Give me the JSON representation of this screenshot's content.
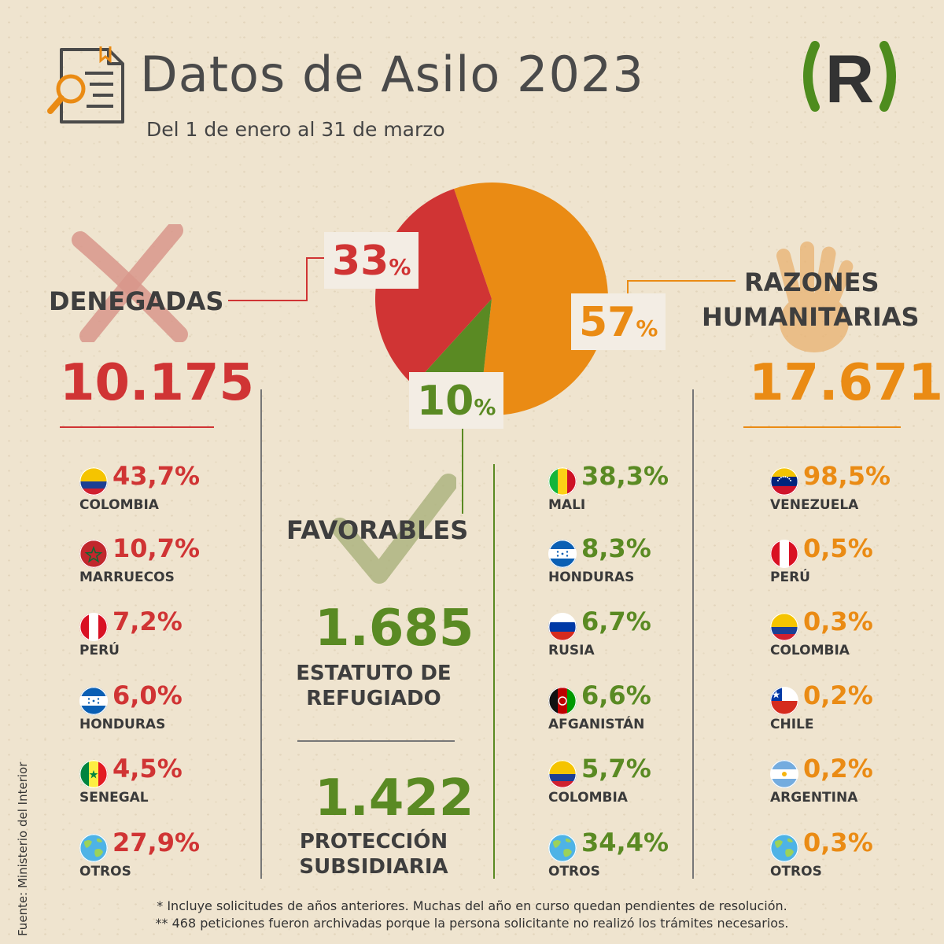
{
  "header": {
    "title": "Datos de Asilo 2023",
    "subtitle": "Del 1 de enero al 31 de marzo",
    "logo_text": "R",
    "document_icon": "document-search-icon"
  },
  "colors": {
    "denegadas": "#d03434",
    "favorables": "#5a8a23",
    "humanitarias": "#ea8b14"
  },
  "chart_data": {
    "type": "pie",
    "slices": [
      {
        "label": "RAZONES HUMANITARIAS",
        "value": 57,
        "color": "#ea8b14"
      },
      {
        "label": "FAVORABLES",
        "value": 10,
        "color": "#5a8a23"
      },
      {
        "label": "DENEGADAS",
        "value": 33,
        "color": "#d03434"
      }
    ],
    "data_labels": {
      "denegadas": "33",
      "favorables": "10",
      "humanitarias": "57",
      "unit": "%"
    }
  },
  "denegadas": {
    "label": "DENEGADAS",
    "total": "10.175",
    "icon": "cross-icon",
    "countries": [
      {
        "pct": "43,7%",
        "name": "COLOMBIA",
        "flag": "colombia"
      },
      {
        "pct": "10,7%",
        "name": "MARRUECOS",
        "flag": "morocco"
      },
      {
        "pct": "7,2%",
        "name": "PERÚ",
        "flag": "peru"
      },
      {
        "pct": "6,0%",
        "name": "HONDURAS",
        "flag": "honduras"
      },
      {
        "pct": "4,5%",
        "name": "SENEGAL",
        "flag": "senegal"
      },
      {
        "pct": "27,9%",
        "name": "OTROS",
        "flag": "globe"
      }
    ]
  },
  "favorables": {
    "label": "FAVORABLES",
    "icon": "checkmark-icon",
    "refugiado_value": "1.685",
    "refugiado_label_1": "ESTATUTO DE",
    "refugiado_label_2": "REFUGIADO",
    "subsidiaria_value": "1.422",
    "subsidiaria_label_1": "PROTECCIÓN",
    "subsidiaria_label_2": "SUBSIDIARIA",
    "countries": [
      {
        "pct": "38,3%",
        "name": "MALI",
        "flag": "mali"
      },
      {
        "pct": "8,3%",
        "name": "HONDURAS",
        "flag": "honduras"
      },
      {
        "pct": "6,7%",
        "name": "RUSIA",
        "flag": "russia"
      },
      {
        "pct": "6,6%",
        "name": "AFGANISTÁN",
        "flag": "afghanistan"
      },
      {
        "pct": "5,7%",
        "name": "COLOMBIA",
        "flag": "colombia"
      },
      {
        "pct": "34,4%",
        "name": "OTROS",
        "flag": "globe"
      }
    ]
  },
  "humanitarias": {
    "label_1": "RAZONES",
    "label_2": "HUMANITARIAS",
    "total": "17.671",
    "icon": "hands-icon",
    "countries": [
      {
        "pct": "98,5%",
        "name": "VENEZUELA",
        "flag": "venezuela"
      },
      {
        "pct": "0,5%",
        "name": "PERÚ",
        "flag": "peru"
      },
      {
        "pct": "0,3%",
        "name": "COLOMBIA",
        "flag": "colombia"
      },
      {
        "pct": "0,2%",
        "name": "CHILE",
        "flag": "chile"
      },
      {
        "pct": "0,2%",
        "name": "ARGENTINA",
        "flag": "argentina"
      },
      {
        "pct": "0,3%",
        "name": "OTROS",
        "flag": "globe"
      }
    ]
  },
  "footer": {
    "note_1": "* Incluye solicitudes de años anteriores. Muchas del año en curso quedan pendientes de resolución.",
    "note_2": "** 468 peticiones fueron archivadas porque la persona solicitante no realizó los trámites necesarios.",
    "source": "Fuente: Ministerio del Interior"
  }
}
